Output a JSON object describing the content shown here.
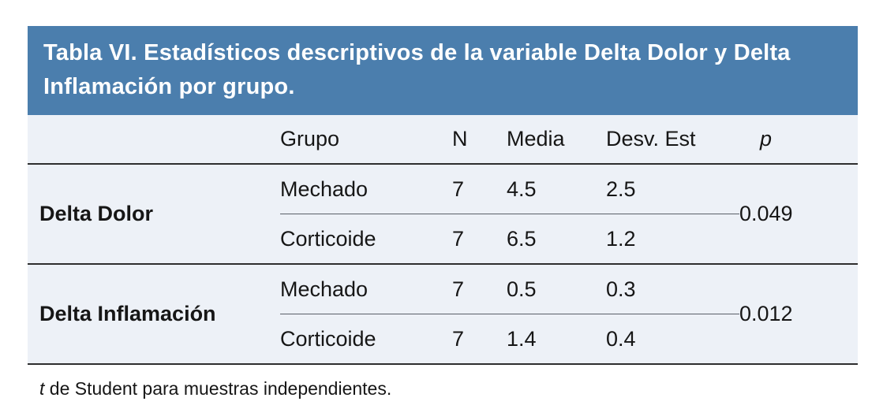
{
  "table": {
    "title": "Tabla VI. Estadísticos descriptivos de la variable Delta Dolor y Delta Inflamación por grupo.",
    "columns": {
      "variable": "",
      "grupo": "Grupo",
      "n": "N",
      "media": "Media",
      "desv": "Desv. Est",
      "p": "p"
    },
    "sections": [
      {
        "variable": "Delta Dolor",
        "p": "0.049",
        "rows": [
          {
            "grupo": "Mechado",
            "n": "7",
            "media": "4.5",
            "desv": "2.5"
          },
          {
            "grupo": "Corticoide",
            "n": "7",
            "media": "6.5",
            "desv": "1.2"
          }
        ]
      },
      {
        "variable": "Delta Inflamación",
        "p": "0.012",
        "rows": [
          {
            "grupo": "Mechado",
            "n": "7",
            "media": "0.5",
            "desv": "0.3"
          },
          {
            "grupo": "Corticoide",
            "n": "7",
            "media": "1.4",
            "desv": "0.4"
          }
        ]
      }
    ],
    "footnote": {
      "italic": "t",
      "rest": " de Student para muestras independientes."
    },
    "colors": {
      "title_bg": "#4b7ead",
      "body_bg": "#edf1f7",
      "line": "#2e2e2e",
      "title_text": "#ffffff",
      "text": "#161616"
    }
  }
}
